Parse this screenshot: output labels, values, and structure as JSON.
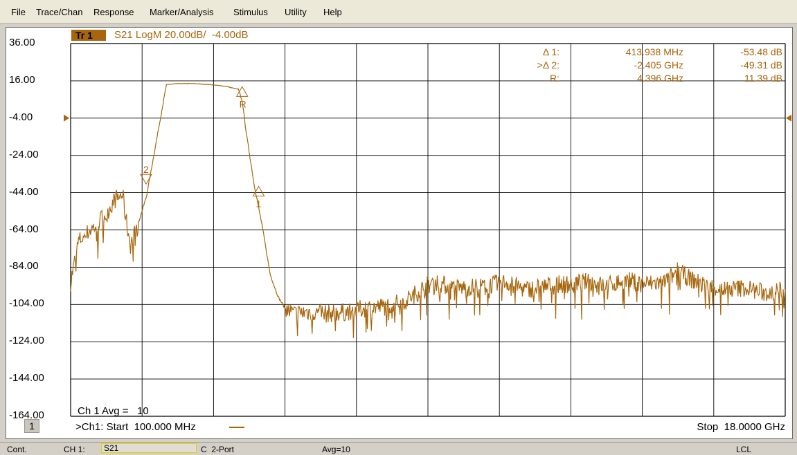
{
  "menu": {
    "items": [
      "File",
      "Trace/Chan",
      "Response",
      "Marker/Analysis",
      "Stimulus",
      "Utility",
      "Help"
    ]
  },
  "trace": {
    "badge": "Tr 1",
    "title": "S21 LogM 20.00dB/  -4.00dB"
  },
  "overlay": {
    "avg": "Ch 1 Avg =   10",
    "channel_number": "1",
    "start": ">Ch1: Start  100.000 MHz",
    "stop": "Stop  18.0000 GHz"
  },
  "status": {
    "mode": "Cont.",
    "channel": "CH 1:",
    "param": "S21",
    "port": "C  2-Port",
    "avg": "Avg=10",
    "remote": "LCL"
  },
  "colors": {
    "trace": "#a8660c",
    "grid": "#000000",
    "background": "#ffffff"
  },
  "chart_data": {
    "type": "line",
    "title": "S21 LogM 20.00dB/  -4.00dB",
    "xlabel": "",
    "ylabel": "",
    "xlim": [
      0.1,
      18.0
    ],
    "x_unit": "GHz",
    "ylim": [
      -164,
      36
    ],
    "y_ticks": [
      "36.00",
      "16.00",
      "-4.00",
      "-24.00",
      "-44.00",
      "-64.00",
      "-84.00",
      "-104.00",
      "-124.00",
      "-144.00",
      "-164.00"
    ],
    "reference_level": -4.0,
    "grid": true,
    "series": [
      {
        "name": "S21",
        "x": [
          0.1,
          0.3,
          0.5,
          0.7,
          1.0,
          1.2,
          1.4,
          1.5,
          1.6,
          1.8,
          2.0,
          2.2,
          2.5,
          2.8,
          3.2,
          3.6,
          4.0,
          4.3,
          4.4,
          4.5,
          4.7,
          4.9,
          5.1,
          5.3,
          5.5,
          5.7,
          6.0,
          6.5,
          7.0,
          7.5,
          8.0,
          8.5,
          9.0,
          9.3,
          9.6,
          10.0,
          10.5,
          11.0,
          11.5,
          12.0,
          12.5,
          13.0,
          13.5,
          14.0,
          14.5,
          15.0,
          15.3,
          15.6,
          16.0,
          16.5,
          17.0,
          17.5,
          18.0
        ],
        "values": [
          -92,
          -70,
          -66,
          -62,
          -55,
          -48,
          -45,
          -60,
          -72,
          -60,
          -46,
          -22,
          14,
          14.5,
          14.5,
          14,
          13,
          11.4,
          5,
          -12,
          -40,
          -62,
          -88,
          -100,
          -107,
          -109,
          -108,
          -109,
          -108,
          -106,
          -105,
          -102,
          -94,
          -92,
          -95,
          -95,
          -94,
          -92,
          -96,
          -94,
          -93,
          -92,
          -94,
          -91,
          -93,
          -92,
          -86,
          -90,
          -94,
          -96,
          -95,
          -98,
          -96
        ]
      }
    ],
    "markers": [
      {
        "label": "Δ 1:",
        "marker": "1",
        "x_text": "413.938 MHz",
        "y_text": "-53.48 dB",
        "x": 4.81,
        "y": -42.1
      },
      {
        "label": ">Δ 2:",
        "marker": "2",
        "x_text": "-2.405 GHz",
        "y_text": "-49.31 dB",
        "x": 1.991,
        "y": -37.9
      },
      {
        "label": "R:",
        "marker": "R",
        "x_text": "4.396 GHz",
        "y_text": "11.39 dB",
        "x": 4.396,
        "y": 11.39
      }
    ]
  }
}
